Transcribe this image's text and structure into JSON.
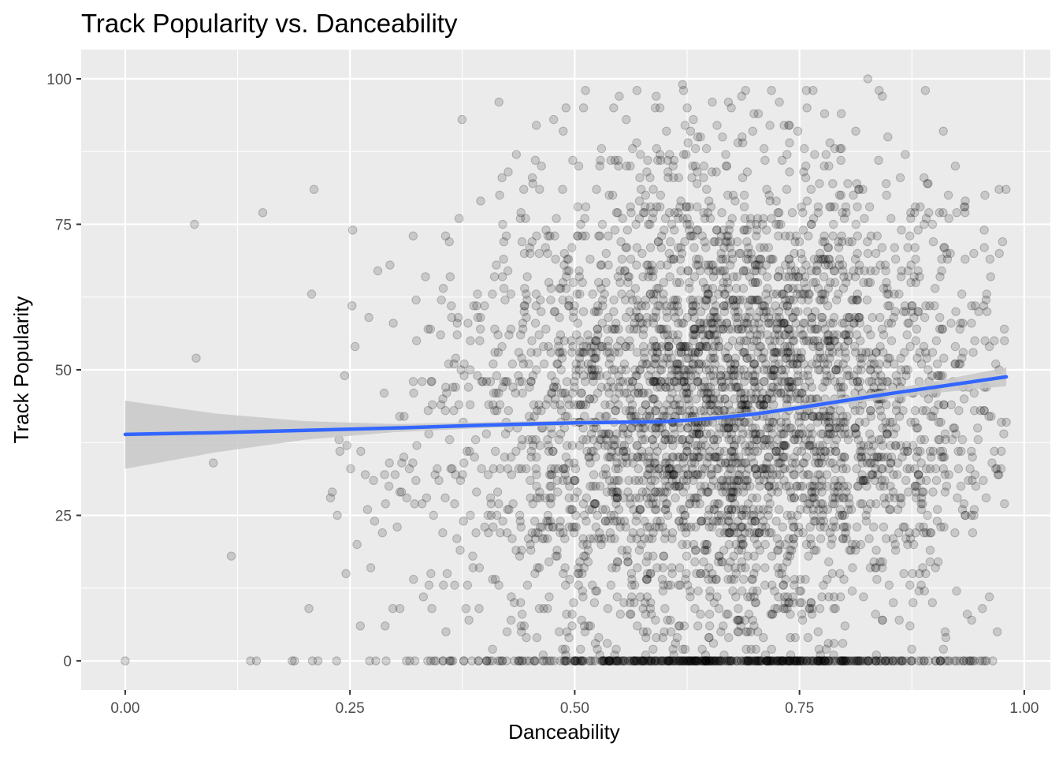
{
  "chart_data": {
    "type": "scatter",
    "title": "Track Popularity vs. Danceability",
    "xlabel": "Danceability",
    "ylabel": "Track Popularity",
    "xlim": [
      -0.049,
      1.029
    ],
    "ylim": [
      -5,
      105
    ],
    "x_ticks": [
      0.0,
      0.25,
      0.5,
      0.75,
      1.0
    ],
    "x_tick_labels": [
      "0.00",
      "0.25",
      "0.50",
      "0.75",
      "1.00"
    ],
    "y_ticks": [
      0,
      25,
      50,
      75,
      100
    ],
    "y_tick_labels": [
      "0",
      "25",
      "50",
      "75",
      "100"
    ],
    "grid": true,
    "background": "#ebebeb",
    "point_color": "#000000",
    "point_alpha": 0.15,
    "smooth_color": "#3366ff",
    "ribbon_color": "#c8c8c8",
    "notable_points": [
      {
        "x": 0.0,
        "y": 0
      },
      {
        "x": 0.077,
        "y": 75
      },
      {
        "x": 0.079,
        "y": 52
      },
      {
        "x": 0.098,
        "y": 34
      },
      {
        "x": 0.118,
        "y": 18
      },
      {
        "x": 0.146,
        "y": 0
      },
      {
        "x": 0.153,
        "y": 77
      },
      {
        "x": 0.21,
        "y": 81
      },
      {
        "x": 0.826,
        "y": 100
      },
      {
        "x": 0.62,
        "y": 99
      },
      {
        "x": 0.512,
        "y": 98
      },
      {
        "x": 0.89,
        "y": 98
      },
      {
        "x": 0.69,
        "y": 98
      },
      {
        "x": 0.765,
        "y": 98
      },
      {
        "x": 0.978,
        "y": 27
      },
      {
        "x": 0.98,
        "y": 41
      },
      {
        "x": 0.972,
        "y": 81
      },
      {
        "x": 0.97,
        "y": 5
      }
    ],
    "smooth_line": [
      {
        "x": 0.0,
        "y": 38.9
      },
      {
        "x": 0.1,
        "y": 39.2
      },
      {
        "x": 0.2,
        "y": 39.6
      },
      {
        "x": 0.3,
        "y": 40.0
      },
      {
        "x": 0.4,
        "y": 40.5
      },
      {
        "x": 0.5,
        "y": 40.9
      },
      {
        "x": 0.6,
        "y": 41.1
      },
      {
        "x": 0.65,
        "y": 41.6
      },
      {
        "x": 0.7,
        "y": 42.4
      },
      {
        "x": 0.75,
        "y": 43.5
      },
      {
        "x": 0.8,
        "y": 44.7
      },
      {
        "x": 0.85,
        "y": 45.9
      },
      {
        "x": 0.9,
        "y": 47.0
      },
      {
        "x": 0.98,
        "y": 48.8
      }
    ],
    "ribbon": [
      {
        "x": 0.0,
        "lo": 33.0,
        "hi": 44.7
      },
      {
        "x": 0.1,
        "lo": 35.8,
        "hi": 42.5
      },
      {
        "x": 0.2,
        "lo": 38.0,
        "hi": 41.2
      },
      {
        "x": 0.3,
        "lo": 39.3,
        "hi": 40.7
      },
      {
        "x": 0.4,
        "lo": 40.0,
        "hi": 41.0
      },
      {
        "x": 0.5,
        "lo": 40.5,
        "hi": 41.3
      },
      {
        "x": 0.6,
        "lo": 40.8,
        "hi": 41.4
      },
      {
        "x": 0.7,
        "lo": 42.0,
        "hi": 42.8
      },
      {
        "x": 0.8,
        "lo": 44.1,
        "hi": 45.3
      },
      {
        "x": 0.9,
        "lo": 46.0,
        "hi": 48.0
      },
      {
        "x": 0.98,
        "lo": 47.2,
        "hi": 50.4
      }
    ]
  }
}
